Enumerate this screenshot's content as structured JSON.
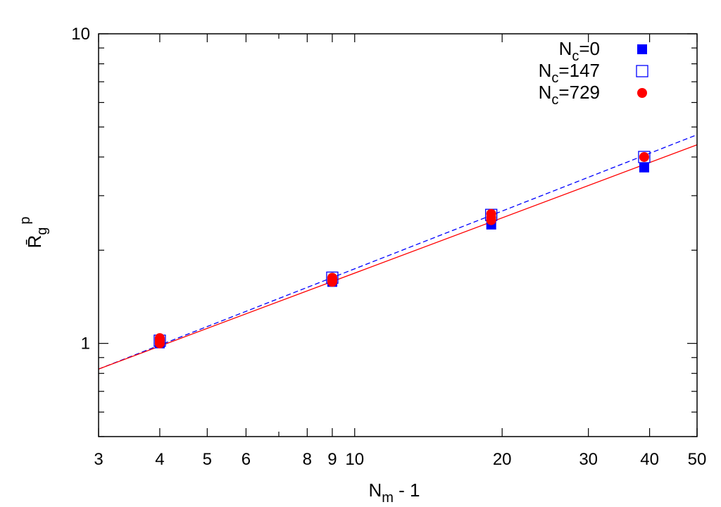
{
  "chart_data": {
    "type": "scatter",
    "xscale": "log",
    "yscale": "log",
    "xlim": [
      3,
      50
    ],
    "ylim": [
      0.5,
      10
    ],
    "x_ticks": [
      3,
      4,
      5,
      6,
      8,
      9,
      10,
      20,
      30,
      40,
      50
    ],
    "y_ticks": [
      1,
      10
    ],
    "xlabel": {
      "main": "N",
      "sub": "m",
      "rest": " - 1"
    },
    "ylabel": {
      "main": "R̄",
      "sub": "g",
      "sup": "p"
    },
    "legend_position": "top-right",
    "series": [
      {
        "name": {
          "main": "N",
          "sub": "c",
          "rest": "=0"
        },
        "marker": "filled-square",
        "color": "#0000ff",
        "points": [
          [
            4,
            1.0
          ],
          [
            9,
            1.58
          ],
          [
            19,
            2.42
          ],
          [
            39,
            3.7
          ]
        ]
      },
      {
        "name": {
          "main": "N",
          "sub": "c",
          "rest": "=147"
        },
        "marker": "open-square",
        "color": "#0000ff",
        "points": [
          [
            4,
            1.02
          ],
          [
            9,
            1.63
          ],
          [
            19,
            2.6
          ],
          [
            39,
            4.0
          ]
        ]
      },
      {
        "name": {
          "main": "N",
          "sub": "c",
          "rest": "=729"
        },
        "marker": "filled-circle",
        "color": "#ff0000",
        "points": [
          [
            4,
            1.0
          ],
          [
            4,
            1.02
          ],
          [
            4,
            1.04
          ],
          [
            9,
            1.58
          ],
          [
            9,
            1.6
          ],
          [
            9,
            1.63
          ],
          [
            19,
            2.5
          ],
          [
            19,
            2.55
          ],
          [
            19,
            2.62
          ],
          [
            39,
            4.0
          ]
        ]
      }
    ],
    "fit_lines": [
      {
        "style": "dashed",
        "color": "#0000ff",
        "points": [
          [
            3,
            0.826
          ],
          [
            50,
            4.72
          ]
        ]
      },
      {
        "style": "solid",
        "color": "#ff0000",
        "points": [
          [
            3,
            0.826
          ],
          [
            50,
            4.38
          ]
        ]
      }
    ]
  }
}
